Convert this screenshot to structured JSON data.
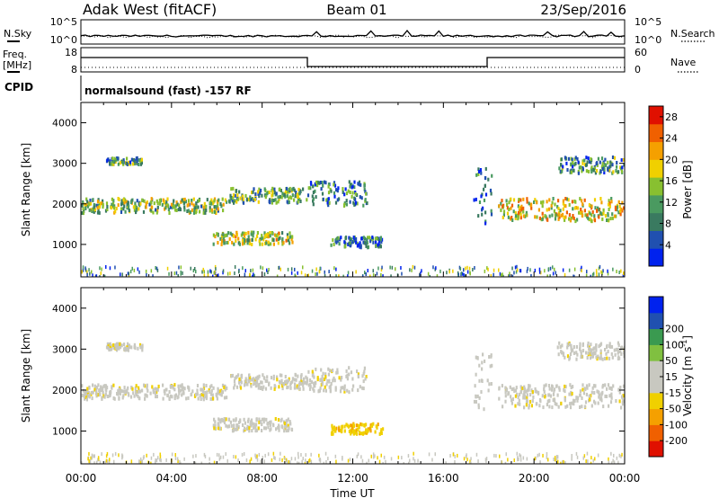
{
  "header": {
    "title": "Adak West (fitACF)",
    "beam": "Beam 01",
    "date": "23/Sep/2016"
  },
  "noise_panel": {
    "left_label": "N.Sky",
    "right_label": "N.Search",
    "left_ticks": [
      "10^5",
      "10^0"
    ],
    "right_ticks": [
      "10^5",
      "10^0"
    ]
  },
  "freq_panel": {
    "left_label_line1": "Freq.",
    "left_label_line2": "[MHz]",
    "right_label": "Nave",
    "left_ticks": [
      "18",
      "8"
    ],
    "right_ticks": [
      "60",
      "0"
    ]
  },
  "cpid_panel": {
    "label": "CPID",
    "text": "normalsound (fast) -157 RF"
  },
  "colors": {
    "power_scale": [
      "#0022ee",
      "#2050b0",
      "#3a7a60",
      "#4a9a60",
      "#88c030",
      "#f0d000",
      "#f5a000",
      "#f06000",
      "#e01000"
    ],
    "velocity_scale": [
      "#e01000",
      "#f06000",
      "#f5a000",
      "#f0d000",
      "#c8c8c0",
      "#c8c8c0",
      "#80c040",
      "#3a9a50",
      "#2050b0",
      "#0022ee"
    ]
  },
  "chart_data": [
    {
      "type": "heatmap",
      "ylabel": "Slant Range [km]",
      "ylim": [
        200,
        4500
      ],
      "yticks": [
        "1000",
        "2000",
        "3000",
        "4000"
      ],
      "xlim": [
        "00:00",
        "24:00"
      ],
      "colorbar": {
        "label": "Power [dB]",
        "ticks": [
          "4",
          "8",
          "12",
          "16",
          "20",
          "24",
          "28"
        ],
        "range": [
          0,
          30
        ]
      },
      "echo_regions": [
        {
          "t_start": 0.0,
          "t_end": 6.4,
          "range_center": 1950,
          "range_halfwidth": 180,
          "power": 14
        },
        {
          "t_start": 1.1,
          "t_end": 2.7,
          "range_center": 3050,
          "range_halfwidth": 80,
          "power": 10
        },
        {
          "t_start": 5.8,
          "t_end": 9.3,
          "range_center": 1150,
          "range_halfwidth": 150,
          "power": 16
        },
        {
          "t_start": 6.5,
          "t_end": 10.0,
          "range_center": 2200,
          "range_halfwidth": 180,
          "power": 12
        },
        {
          "t_start": 10.0,
          "t_end": 12.6,
          "range_center": 2250,
          "range_halfwidth": 300,
          "power": 8
        },
        {
          "t_start": 11.0,
          "t_end": 13.3,
          "range_center": 1050,
          "range_halfwidth": 130,
          "power": 8
        },
        {
          "t_start": 17.3,
          "t_end": 18.1,
          "range_center": 2200,
          "range_halfwidth": 700,
          "power": 6
        },
        {
          "t_start": 18.4,
          "t_end": 24.0,
          "range_center": 1850,
          "range_halfwidth": 280,
          "power": 18
        },
        {
          "t_start": 21.0,
          "t_end": 24.0,
          "range_center": 2950,
          "range_halfwidth": 200,
          "power": 10
        }
      ]
    },
    {
      "type": "heatmap",
      "xlabel": "Time UT",
      "ylabel": "Slant Range [km]",
      "ylim": [
        200,
        4500
      ],
      "yticks": [
        "1000",
        "2000",
        "3000",
        "4000"
      ],
      "xticks": [
        "00:00",
        "04:00",
        "08:00",
        "12:00",
        "16:00",
        "20:00",
        "00:00"
      ],
      "colorbar": {
        "label": "Velocity [m s^-1]",
        "ticks": [
          "-200",
          "-100",
          "-50",
          "-15",
          "15",
          "50",
          "100",
          "200"
        ]
      },
      "echo_regions": [
        {
          "t_start": 0.0,
          "t_end": 6.4,
          "range_center": 1950,
          "range_halfwidth": 180,
          "velocity": 0
        },
        {
          "t_start": 1.1,
          "t_end": 2.7,
          "range_center": 3050,
          "range_halfwidth": 80,
          "velocity": 0
        },
        {
          "t_start": 5.8,
          "t_end": 9.3,
          "range_center": 1150,
          "range_halfwidth": 150,
          "velocity": 0
        },
        {
          "t_start": 6.5,
          "t_end": 10.0,
          "range_center": 2200,
          "range_halfwidth": 180,
          "velocity": 0
        },
        {
          "t_start": 10.0,
          "t_end": 12.6,
          "range_center": 2250,
          "range_halfwidth": 300,
          "velocity": 0
        },
        {
          "t_start": 11.0,
          "t_end": 13.3,
          "range_center": 1050,
          "range_halfwidth": 130,
          "velocity": -40
        },
        {
          "t_start": 17.3,
          "t_end": 18.1,
          "range_center": 2200,
          "range_halfwidth": 700,
          "velocity": 20
        },
        {
          "t_start": 18.4,
          "t_end": 24.0,
          "range_center": 1850,
          "range_halfwidth": 280,
          "velocity": 0
        },
        {
          "t_start": 21.0,
          "t_end": 24.0,
          "range_center": 2950,
          "range_halfwidth": 200,
          "velocity": 0
        }
      ]
    }
  ]
}
